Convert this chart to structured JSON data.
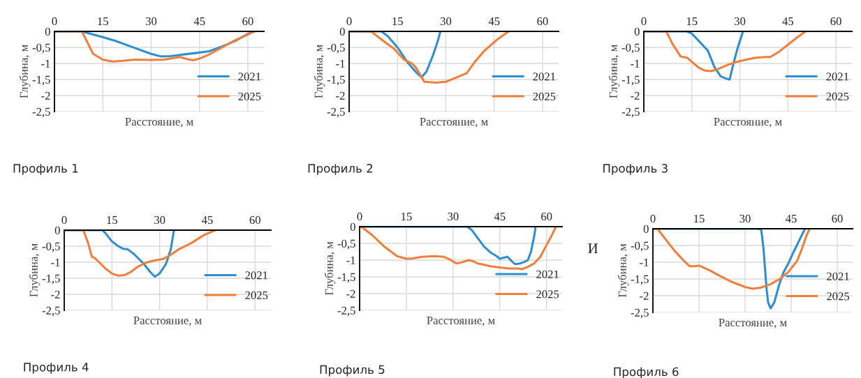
{
  "chart_data": [
    {
      "type": "line",
      "title": "Профиль 1",
      "xlabel": "Расстояние, м",
      "ylabel": "Глубина, м",
      "xlim": [
        0,
        65
      ],
      "xticks": [
        0,
        15,
        30,
        45,
        60
      ],
      "ylim": [
        -2.5,
        0
      ],
      "yticks": [
        {
          "value": -2.5,
          "label": "-2,5"
        },
        {
          "value": -2,
          "label": "-2"
        },
        {
          "value": -1.5,
          "label": "-1,5"
        },
        {
          "value": -1,
          "label": "-1"
        },
        {
          "value": -0.5,
          "label": "-0,5"
        },
        {
          "value": 0,
          "label": "0"
        }
      ],
      "grid": true,
      "legend": "right",
      "marker": "none",
      "line_style": "solid",
      "series": [
        {
          "name": "2021",
          "color": "#2e8fd0",
          "x": [
            0,
            8.5,
            15,
            19,
            25,
            30,
            33,
            36,
            40,
            45,
            48,
            52,
            56,
            60,
            62
          ],
          "values": [
            0,
            0,
            -0.18,
            -0.3,
            -0.52,
            -0.7,
            -0.78,
            -0.77,
            -0.72,
            -0.66,
            -0.62,
            -0.47,
            -0.3,
            -0.08,
            0
          ]
        },
        {
          "name": "2025",
          "color": "#f07f3c",
          "x": [
            0,
            8.5,
            10,
            12,
            15,
            18,
            21,
            25,
            30,
            34,
            37,
            39,
            41,
            43,
            45,
            48,
            52,
            56,
            60,
            62
          ],
          "values": [
            0,
            0,
            -0.3,
            -0.7,
            -0.88,
            -0.94,
            -0.92,
            -0.88,
            -0.89,
            -0.88,
            -0.83,
            -0.8,
            -0.86,
            -0.9,
            -0.85,
            -0.72,
            -0.5,
            -0.28,
            -0.1,
            0
          ]
        }
      ]
    },
    {
      "type": "line",
      "title": "Профиль 2",
      "xlabel": "Расстояние, м",
      "ylabel": "Глубина, м",
      "xlim": [
        0,
        65
      ],
      "xticks": [
        0,
        15,
        30,
        45,
        60
      ],
      "ylim": [
        -2.5,
        0
      ],
      "yticks": [
        {
          "value": -2.5,
          "label": "-2,5"
        },
        {
          "value": -2,
          "label": "-2"
        },
        {
          "value": -1.5,
          "label": "-1,5"
        },
        {
          "value": -1,
          "label": "-1"
        },
        {
          "value": -0.5,
          "label": "-0,5"
        },
        {
          "value": 0,
          "label": "0"
        }
      ],
      "grid": true,
      "legend": "right",
      "marker": "none",
      "line_style": "solid",
      "series": [
        {
          "name": "2021",
          "color": "#2e8fd0",
          "x": [
            0,
            10,
            12,
            15,
            18,
            21,
            22.5,
            24,
            26,
            27.5,
            28.3
          ],
          "values": [
            0,
            0,
            -0.15,
            -0.5,
            -0.95,
            -1.3,
            -1.43,
            -1.25,
            -0.75,
            -0.3,
            0
          ]
        },
        {
          "name": "2025",
          "color": "#f07f3c",
          "x": [
            0,
            6.8,
            10,
            14,
            17,
            19.5,
            20.5,
            22.5,
            23.3,
            27,
            30,
            33,
            36.5,
            39,
            42,
            46,
            49.5
          ],
          "values": [
            0,
            0,
            -0.25,
            -0.55,
            -0.88,
            -1.0,
            -1.1,
            -1.42,
            -1.57,
            -1.6,
            -1.57,
            -1.45,
            -1.3,
            -0.95,
            -0.6,
            -0.25,
            0
          ]
        }
      ]
    },
    {
      "type": "line",
      "title": "Профиль 3",
      "xlabel": "Расстояние, м",
      "ylabel": "Глубина, м",
      "xlim": [
        0,
        65
      ],
      "xticks": [
        0,
        15,
        30,
        45,
        60
      ],
      "ylim": [
        -2.5,
        0
      ],
      "yticks": [
        {
          "value": -2.5,
          "label": "-2,5"
        },
        {
          "value": -2,
          "label": "-2"
        },
        {
          "value": -1.5,
          "label": "-1,5"
        },
        {
          "value": -1,
          "label": "-1"
        },
        {
          "value": -0.5,
          "label": "-0,5"
        },
        {
          "value": 0,
          "label": "0"
        }
      ],
      "grid": true,
      "legend": "right",
      "marker": "none",
      "line_style": "solid",
      "series": [
        {
          "name": "2021",
          "color": "#2e8fd0",
          "x": [
            0,
            13.5,
            15,
            17,
            20,
            22,
            24,
            26,
            26.8,
            28,
            29.5,
            31
          ],
          "values": [
            0,
            0,
            -0.07,
            -0.28,
            -0.6,
            -1.1,
            -1.4,
            -1.48,
            -1.5,
            -1.0,
            -0.45,
            0
          ]
        },
        {
          "name": "2025",
          "color": "#f07f3c",
          "x": [
            0,
            7,
            9,
            11.5,
            13.5,
            15,
            17,
            19,
            21,
            23,
            26,
            29,
            32,
            35,
            38,
            39.5,
            42,
            45,
            48,
            50.5
          ],
          "values": [
            0,
            0,
            -0.4,
            -0.78,
            -0.82,
            -0.95,
            -1.12,
            -1.22,
            -1.24,
            -1.18,
            -1.05,
            -0.95,
            -0.88,
            -0.82,
            -0.8,
            -0.8,
            -0.65,
            -0.42,
            -0.18,
            0
          ]
        }
      ]
    },
    {
      "type": "line",
      "title": "Профиль 4",
      "xlabel": "Расстояние, м",
      "ylabel": "Глубина, м",
      "xlim": [
        0,
        65
      ],
      "xticks": [
        0,
        15,
        30,
        45,
        60
      ],
      "ylim": [
        -2.5,
        0
      ],
      "yticks": [
        {
          "value": -2.5,
          "label": "-2,5"
        },
        {
          "value": -2,
          "label": "-2"
        },
        {
          "value": -1.5,
          "label": "-1,5"
        },
        {
          "value": -1,
          "label": "-1"
        },
        {
          "value": -0.5,
          "label": "-0,5"
        },
        {
          "value": 0,
          "label": "0"
        }
      ],
      "grid": true,
      "legend": "right",
      "marker": "none",
      "line_style": "solid",
      "series": [
        {
          "name": "2021",
          "color": "#2e8fd0",
          "x": [
            0,
            12,
            13,
            15,
            17,
            18.5,
            20,
            22,
            25,
            27,
            28.5,
            30,
            32,
            33.5,
            34.5
          ],
          "values": [
            0,
            0,
            -0.1,
            -0.35,
            -0.5,
            -0.58,
            -0.6,
            -0.75,
            -1.05,
            -1.3,
            -1.45,
            -1.35,
            -1.05,
            -0.6,
            0
          ]
        },
        {
          "name": "2025",
          "color": "#f07f3c",
          "x": [
            0,
            6,
            7.5,
            8.7,
            9.5,
            11,
            13,
            15,
            17,
            19,
            21,
            23,
            25.5,
            28,
            31,
            33,
            36,
            40,
            44,
            47.5
          ],
          "values": [
            0,
            0,
            -0.4,
            -0.83,
            -0.86,
            -1.0,
            -1.2,
            -1.35,
            -1.42,
            -1.4,
            -1.3,
            -1.15,
            -1.02,
            -0.95,
            -0.9,
            -0.8,
            -0.6,
            -0.4,
            -0.15,
            0
          ]
        }
      ]
    },
    {
      "type": "line",
      "title": "Профиль 5",
      "xlabel": "Расстояние, м",
      "ylabel": "Глубина, м",
      "xlim": [
        0,
        65
      ],
      "xticks": [
        0,
        15,
        30,
        45,
        60
      ],
      "ylim": [
        -2.5,
        0
      ],
      "yticks": [
        {
          "value": -2.5,
          "label": "-2,5"
        },
        {
          "value": -2,
          "label": "-2"
        },
        {
          "value": -1.5,
          "label": "-1,5"
        },
        {
          "value": -1,
          "label": "-1"
        },
        {
          "value": -0.5,
          "label": "-0,5"
        },
        {
          "value": 0,
          "label": "0"
        }
      ],
      "grid": true,
      "legend": "right",
      "marker": "none",
      "line_style": "solid",
      "series": [
        {
          "name": "2021",
          "color": "#2e8fd0",
          "x": [
            0,
            34.5,
            36,
            38,
            40,
            42,
            44,
            45,
            46,
            47.5,
            49,
            50,
            51.5,
            53,
            54,
            55,
            56,
            56.5
          ],
          "values": [
            0,
            0,
            -0.1,
            -0.35,
            -0.6,
            -0.77,
            -0.88,
            -0.96,
            -0.93,
            -0.9,
            -1.05,
            -1.12,
            -1.1,
            -1.05,
            -1.0,
            -0.75,
            -0.3,
            0
          ]
        },
        {
          "name": "2025",
          "color": "#f07f3c",
          "x": [
            0,
            1,
            4,
            8,
            12,
            15,
            17,
            20,
            24,
            27,
            29,
            31,
            33,
            35,
            36,
            38,
            42,
            45,
            48,
            51,
            52,
            54,
            56,
            58,
            60,
            62,
            63
          ],
          "values": [
            0,
            -0.03,
            -0.25,
            -0.6,
            -0.88,
            -0.96,
            -0.95,
            -0.9,
            -0.88,
            -0.9,
            -0.98,
            -1.1,
            -1.06,
            -1.0,
            -1.02,
            -1.1,
            -1.18,
            -1.22,
            -1.25,
            -1.25,
            -1.27,
            -1.2,
            -1.1,
            -0.9,
            -0.55,
            -0.2,
            0
          ]
        }
      ]
    },
    {
      "type": "line",
      "title": "Профиль 6",
      "xlabel": "Расстояние, м",
      "ylabel": "Глубина, м",
      "annotations": [
        "И"
      ],
      "xlim": [
        0,
        65
      ],
      "xticks": [
        0,
        15,
        30,
        45,
        60
      ],
      "ylim": [
        -2.5,
        0
      ],
      "yticks": [
        {
          "value": -2.5,
          "label": "-2,5"
        },
        {
          "value": -2,
          "label": "-2"
        },
        {
          "value": -1.5,
          "label": "-1,5"
        },
        {
          "value": -1,
          "label": "-1"
        },
        {
          "value": -0.5,
          "label": "-0,5"
        },
        {
          "value": 0,
          "label": "0"
        }
      ],
      "grid": true,
      "legend": "right",
      "marker": "none",
      "line_style": "solid",
      "series": [
        {
          "name": "2021",
          "color": "#2e8fd0",
          "x": [
            0,
            34,
            35.2,
            35.5,
            36,
            36.5,
            37,
            37.5,
            38.3,
            39.5,
            41,
            42.5,
            44,
            46,
            48,
            49.5
          ],
          "values": [
            0,
            0,
            -0.02,
            -0.2,
            -0.6,
            -1.2,
            -1.8,
            -2.2,
            -2.38,
            -2.2,
            -1.7,
            -1.3,
            -1.05,
            -0.65,
            -0.28,
            0
          ]
        },
        {
          "name": "2025",
          "color": "#f07f3c",
          "x": [
            0,
            1.5,
            4,
            7,
            10,
            12,
            13.5,
            15,
            18,
            22,
            26,
            30,
            32.5,
            35,
            38,
            41,
            44,
            47,
            48.5,
            50,
            51
          ],
          "values": [
            0,
            0,
            -0.3,
            -0.65,
            -0.95,
            -1.12,
            -1.12,
            -1.1,
            -1.22,
            -1.42,
            -1.6,
            -1.74,
            -1.79,
            -1.76,
            -1.67,
            -1.52,
            -1.3,
            -0.95,
            -0.6,
            -0.2,
            0
          ]
        }
      ]
    }
  ]
}
